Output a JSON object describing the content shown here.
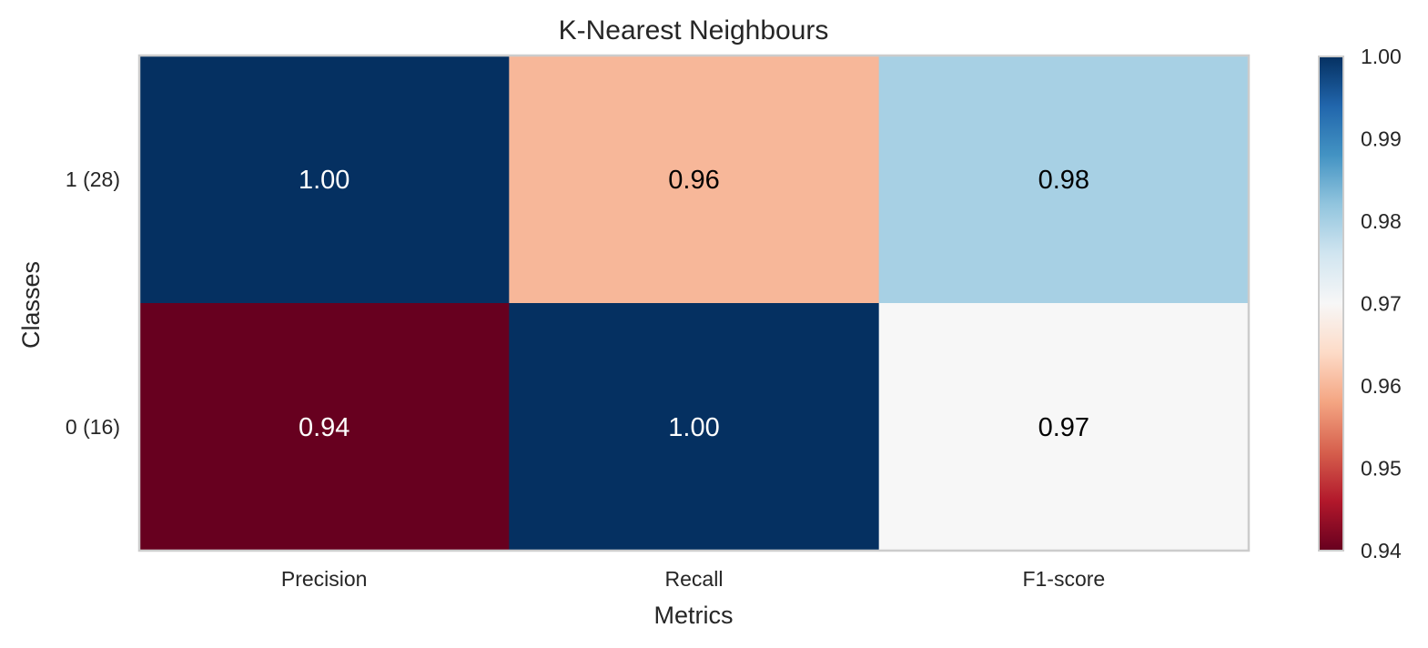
{
  "chart_data": {
    "type": "heatmap",
    "title": "K-Nearest Neighbours",
    "xlabel": "Metrics",
    "ylabel": "Classes",
    "x_categories": [
      "Precision",
      "Recall",
      "F1-score"
    ],
    "y_categories": [
      "1 (28)",
      "0 (16)"
    ],
    "values": [
      [
        1.0,
        0.96,
        0.98
      ],
      [
        0.94,
        1.0,
        0.97
      ]
    ],
    "value_labels": [
      [
        "1.00",
        "0.96",
        "0.98"
      ],
      [
        "0.94",
        "1.00",
        "0.97"
      ]
    ],
    "colorbar": {
      "colormap": "RdBu",
      "vmin": 0.94,
      "vmax": 1.0,
      "ticks": [
        0.94,
        0.95,
        0.96,
        0.97,
        0.98,
        0.99,
        1.0
      ],
      "tick_labels": [
        "0.94",
        "0.95",
        "0.96",
        "0.97",
        "0.98",
        "0.99",
        "1.00"
      ]
    },
    "grid": false
  }
}
